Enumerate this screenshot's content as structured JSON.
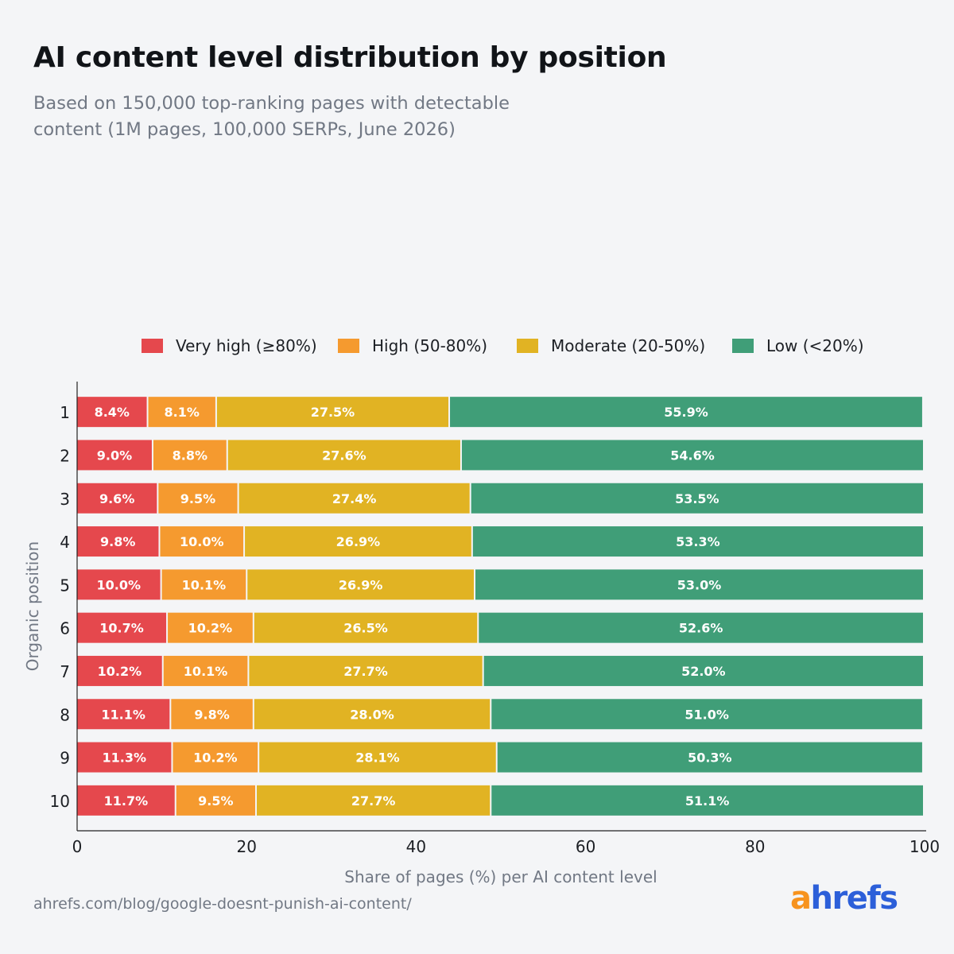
{
  "chart_data": {
    "type": "bar",
    "orientation": "horizontal",
    "stacked": true,
    "title": "AI content level distribution by position",
    "subtitle": "Based on 150,000 top-ranking pages with detectable content (1M pages, 100,000 SERPs, June 2026)",
    "xlabel": "Share of pages (%) per AI content level",
    "ylabel": "Organic position",
    "xlim": [
      0,
      100
    ],
    "xticks": [
      "0",
      "20",
      "40",
      "60",
      "80",
      "100"
    ],
    "grid": false,
    "legend_position": "top",
    "categories": [
      "1",
      "2",
      "3",
      "4",
      "5",
      "6",
      "7",
      "8",
      "9",
      "10"
    ],
    "series": [
      {
        "name": "Very high (≥80%)",
        "color": "#e5484d",
        "values": [
          8.4,
          9.0,
          9.6,
          9.8,
          10.0,
          10.7,
          10.2,
          11.1,
          11.3,
          11.7
        ],
        "labels": [
          "8.4%",
          "9.0%",
          "9.6%",
          "9.8%",
          "10.0%",
          "10.7%",
          "10.2%",
          "11.1%",
          "11.3%",
          "11.7%"
        ]
      },
      {
        "name": "High (50-80%)",
        "color": "#f59a2f",
        "values": [
          8.1,
          8.8,
          9.5,
          10.0,
          10.1,
          10.2,
          10.1,
          9.8,
          10.2,
          9.5
        ],
        "labels": [
          "8.1%",
          "8.8%",
          "9.5%",
          "10.0%",
          "10.1%",
          "10.2%",
          "10.1%",
          "9.8%",
          "10.2%",
          "9.5%"
        ]
      },
      {
        "name": "Moderate (20-50%)",
        "color": "#e1b323",
        "values": [
          27.5,
          27.6,
          27.4,
          26.9,
          26.9,
          26.5,
          27.7,
          28.0,
          28.1,
          27.7
        ],
        "labels": [
          "27.5%",
          "27.6%",
          "27.4%",
          "26.9%",
          "26.9%",
          "26.5%",
          "27.7%",
          "28.0%",
          "28.1%",
          "27.7%"
        ]
      },
      {
        "name": "Low (<20%)",
        "color": "#409e78",
        "values": [
          55.9,
          54.6,
          53.5,
          53.3,
          53.0,
          52.6,
          52.0,
          51.0,
          50.3,
          51.1
        ],
        "labels": [
          "55.9%",
          "54.6%",
          "53.5%",
          "53.3%",
          "53.0%",
          "52.6%",
          "52.0%",
          "51.0%",
          "50.3%",
          "51.1%"
        ]
      }
    ]
  },
  "footer": {
    "source_url": "ahrefs.com/blog/google-doesnt-punish-ai-content/",
    "logo_a": "a",
    "logo_rest": "hrefs"
  },
  "colors": {
    "background": "#f4f5f7",
    "title": "#111418",
    "muted_text": "#717884",
    "axis": "#222222"
  }
}
